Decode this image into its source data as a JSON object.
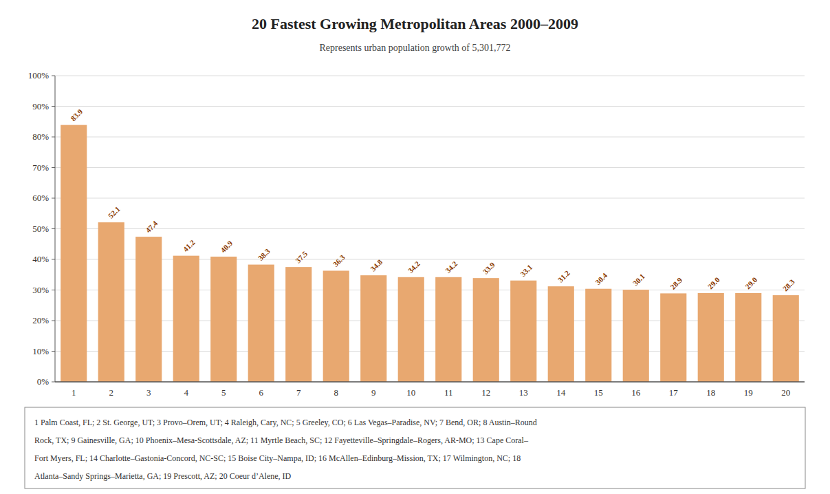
{
  "chart_data": {
    "type": "bar",
    "title": "20 Fastest Growing Metropolitan Areas 2000–2009",
    "subtitle": "Represents urban population growth of 5,301,772",
    "categories": [
      "1",
      "2",
      "3",
      "4",
      "5",
      "6",
      "7",
      "8",
      "9",
      "10",
      "11",
      "12",
      "13",
      "14",
      "15",
      "16",
      "17",
      "18",
      "19",
      "20"
    ],
    "values": [
      83.9,
      52.1,
      47.4,
      41.2,
      40.9,
      38.3,
      37.5,
      36.3,
      34.8,
      34.2,
      34.2,
      33.9,
      33.1,
      31.2,
      30.4,
      30.1,
      28.9,
      29.0,
      29.0,
      28.3
    ],
    "value_labels": [
      "83.9",
      "52.1",
      "47.4",
      "41.2",
      "40.9",
      "38.3",
      "37.5",
      "36.3",
      "34.8",
      "34.2",
      "34.2",
      "33.9",
      "33.1",
      "31.2",
      "30.4",
      "30.1",
      "28.9",
      "29.0",
      "29.0",
      "28.3"
    ],
    "data_labels": true,
    "color": "#E8A870",
    "ylim": [
      0,
      100
    ],
    "yticks": [
      {
        "value": 0,
        "label": "0%"
      },
      {
        "value": 10,
        "label": "10%"
      },
      {
        "value": 20,
        "label": "20%"
      },
      {
        "value": 30,
        "label": "30%"
      },
      {
        "value": 40,
        "label": "40%"
      },
      {
        "value": 50,
        "label": "50%"
      },
      {
        "value": 60,
        "label": "60%"
      },
      {
        "value": 70,
        "label": "70%"
      },
      {
        "value": 80,
        "label": "80%"
      },
      {
        "value": 90,
        "label": "90%"
      },
      {
        "value": 100,
        "label": "100%"
      }
    ],
    "grid": true,
    "annotations": [
      "1 Palm Coast, FL; 2 St. George, UT; 3 Provo–Orem, UT; 4 Raleigh, Cary, NC; 5 Greeley, CO; 6 Las Vegas–Paradise, NV; 7 Bend, OR; 8 Austin–Round",
      "Rock, TX; 9 Gainesville, GA; 10 Phoenix–Mesa-Scottsdale, AZ; 11 Myrtle Beach, SC; 12 Fayetteville–Springdale–Rogers, AR-MO; 13 Cape Coral–",
      "Fort Myers, FL; 14 Charlotte–Gastonia-Concord, NC-SC; 15 Boise City–Nampa, ID; 16 McAllen–Edinburg–Mission, TX; 17 Wilmington, NC; 18",
      "Atlanta–Sandy Springs–Marietta, GA; 19 Prescott, AZ; 20 Coeur d’Alene, ID"
    ]
  }
}
